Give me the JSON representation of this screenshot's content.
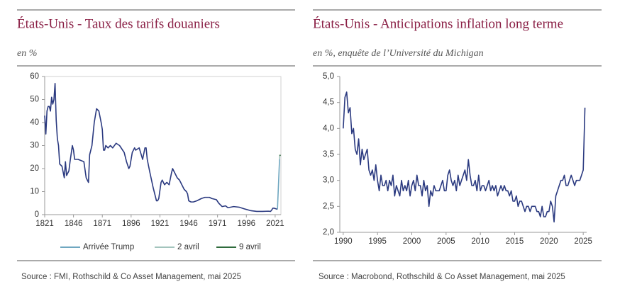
{
  "chart_data": [
    {
      "type": "line",
      "title": "États-Unis  - Taux des tarifs douaniers",
      "subtitle": "en %",
      "source": "Source : FMI, Rothschild & Co Asset Management, mai 2025",
      "xlim": [
        1821,
        2026
      ],
      "xticks": [
        1821,
        1846,
        1871,
        1896,
        1921,
        1946,
        1971,
        1996,
        2021
      ],
      "ylim": [
        0,
        60
      ],
      "yticks": [
        0,
        10,
        20,
        30,
        40,
        50,
        60
      ],
      "legend": "bottom",
      "series": [
        {
          "color": "#2b3a80",
          "x": [
            1821,
            1822,
            1823,
            1824,
            1825,
            1826,
            1827,
            1828,
            1829,
            1830,
            1831,
            1832,
            1833,
            1834,
            1836,
            1838,
            1839,
            1840,
            1842,
            1843,
            1845,
            1846,
            1847,
            1850,
            1855,
            1857,
            1858,
            1859,
            1860,
            1862,
            1864,
            1866,
            1868,
            1870,
            1871,
            1872,
            1873,
            1874,
            1876,
            1878,
            1880,
            1883,
            1886,
            1890,
            1892,
            1894,
            1895,
            1897,
            1899,
            1900,
            1903,
            1906,
            1908,
            1909,
            1910,
            1912,
            1915,
            1917,
            1918,
            1919,
            1920,
            1922,
            1923,
            1925,
            1927,
            1929,
            1931,
            1932,
            1934,
            1936,
            1938,
            1940,
            1942,
            1944,
            1945,
            1946,
            1948,
            1950,
            1953,
            1957,
            1960,
            1964,
            1966,
            1970,
            1972,
            1975,
            1978,
            1980,
            1985,
            1990,
            1995,
            2000,
            2005,
            2010,
            2015,
            2017,
            2018,
            2019,
            2020,
            2023
          ],
          "values": [
            43,
            35,
            45,
            47,
            47,
            45,
            51,
            48,
            50,
            57,
            41,
            33,
            30,
            22,
            21,
            16,
            23,
            17,
            19,
            23,
            30,
            28,
            24,
            24,
            23,
            16,
            15,
            14,
            26,
            30,
            40,
            46,
            45,
            40,
            37,
            28,
            28,
            30,
            29,
            30,
            29,
            31,
            30,
            27,
            23,
            20,
            21,
            27,
            29,
            28,
            29,
            24,
            29,
            29,
            24,
            19,
            12,
            8,
            6,
            6,
            7,
            14,
            15,
            13,
            14,
            13,
            18,
            20,
            18,
            16,
            15,
            13,
            11,
            10,
            9,
            6,
            5.5,
            5.5,
            6,
            7,
            7.5,
            7.5,
            7,
            6.5,
            5,
            3.5,
            3.8,
            3,
            3.5,
            3.2,
            2.4,
            1.7,
            1.4,
            1.4,
            1.5,
            1.4,
            2,
            2.8,
            2.8,
            2.3
          ]
        },
        {
          "name": "Arrivée Trump",
          "color": "#6fa7c0",
          "x": [
            2023,
            2024.8
          ],
          "values": [
            2.3,
            24
          ]
        },
        {
          "name": "2 avril",
          "color": "#a3c4bd",
          "x": [
            2024.8,
            2025.1
          ],
          "values": [
            24,
            26
          ]
        },
        {
          "name": "9 avril",
          "color": "#2f6b3c",
          "x": [
            2025.1,
            2025.4
          ],
          "values": [
            26,
            25.5
          ]
        }
      ]
    },
    {
      "type": "line",
      "title": "États-Unis  - Anticipations inflation long terme",
      "subtitle": "en %, enquête de l’Université du Michigan",
      "source": "Source : Macrobond, Rothschild & Co Asset Management, mai 2025",
      "xlim": [
        1989.5,
        2025.5
      ],
      "xticks": [
        1990,
        1995,
        2000,
        2005,
        2010,
        2015,
        2020,
        2025
      ],
      "ylim": [
        2,
        5
      ],
      "yticks": [
        {
          "value": 2,
          "label": "2,0"
        },
        {
          "value": 2.5,
          "label": "2,5"
        },
        {
          "value": 3,
          "label": "3,0"
        },
        {
          "value": 3.5,
          "label": "3,5"
        },
        {
          "value": 4,
          "label": "4,0"
        },
        {
          "value": 4.5,
          "label": "4,5"
        },
        {
          "value": 5,
          "label": "5,0"
        }
      ],
      "series": [
        {
          "color": "#2b3a80",
          "x": [
            1990,
            1990.25,
            1990.5,
            1990.75,
            1991,
            1991.25,
            1991.5,
            1991.75,
            1992,
            1992.25,
            1992.5,
            1992.75,
            1993,
            1993.25,
            1993.5,
            1993.75,
            1994,
            1994.25,
            1994.5,
            1994.75,
            1995,
            1995.25,
            1995.5,
            1995.75,
            1996,
            1996.25,
            1996.5,
            1996.75,
            1997,
            1997.25,
            1997.5,
            1997.75,
            1998,
            1998.25,
            1998.5,
            1998.75,
            1999,
            1999.25,
            1999.5,
            1999.75,
            2000,
            2000.25,
            2000.5,
            2000.75,
            2001,
            2001.25,
            2001.5,
            2001.75,
            2002,
            2002.25,
            2002.5,
            2002.75,
            2003,
            2003.25,
            2003.5,
            2003.75,
            2004,
            2004.25,
            2004.5,
            2004.75,
            2005,
            2005.25,
            2005.5,
            2005.75,
            2006,
            2006.25,
            2006.5,
            2006.75,
            2007,
            2007.25,
            2007.5,
            2007.75,
            2008,
            2008.25,
            2008.5,
            2008.75,
            2009,
            2009.25,
            2009.5,
            2009.75,
            2010,
            2010.25,
            2010.5,
            2010.75,
            2011,
            2011.25,
            2011.5,
            2011.75,
            2012,
            2012.25,
            2012.5,
            2012.75,
            2013,
            2013.25,
            2013.5,
            2013.75,
            2014,
            2014.25,
            2014.5,
            2014.75,
            2015,
            2015.25,
            2015.5,
            2015.75,
            2016,
            2016.25,
            2016.5,
            2016.75,
            2017,
            2017.25,
            2017.5,
            2017.75,
            2018,
            2018.25,
            2018.5,
            2018.75,
            2019,
            2019.25,
            2019.5,
            2019.75,
            2020,
            2020.25,
            2020.5,
            2020.75,
            2021,
            2021.25,
            2021.5,
            2021.75,
            2022,
            2022.25,
            2022.5,
            2022.75,
            2023,
            2023.25,
            2023.5,
            2023.75,
            2024,
            2024.25,
            2024.5,
            2024.75,
            2025,
            2025.25
          ],
          "values": [
            4.0,
            4.6,
            4.7,
            4.3,
            4.4,
            3.9,
            4.0,
            3.6,
            3.5,
            3.8,
            3.3,
            3.6,
            3.4,
            3.5,
            3.6,
            3.2,
            3.1,
            3.2,
            3.0,
            3.3,
            3.0,
            2.8,
            3.1,
            2.9,
            2.9,
            3.0,
            2.8,
            3.0,
            2.9,
            3.1,
            2.7,
            2.9,
            2.8,
            2.7,
            3.0,
            2.8,
            2.9,
            2.8,
            3.0,
            2.7,
            2.9,
            3.0,
            2.8,
            3.1,
            2.9,
            2.9,
            2.7,
            3.0,
            2.8,
            2.9,
            2.5,
            2.8,
            2.7,
            2.9,
            2.8,
            2.8,
            2.8,
            2.9,
            3.0,
            2.8,
            2.8,
            3.1,
            3.2,
            3.0,
            2.9,
            3.0,
            2.8,
            3.1,
            2.9,
            3.0,
            3.1,
            3.2,
            3.0,
            3.4,
            3.1,
            2.9,
            2.9,
            3.0,
            2.8,
            3.1,
            2.8,
            2.9,
            2.9,
            2.8,
            2.9,
            3.0,
            2.8,
            2.9,
            2.8,
            2.9,
            2.7,
            2.8,
            2.9,
            2.8,
            2.9,
            2.8,
            2.8,
            2.7,
            2.8,
            2.6,
            2.6,
            2.7,
            2.5,
            2.6,
            2.6,
            2.5,
            2.4,
            2.5,
            2.5,
            2.4,
            2.5,
            2.5,
            2.5,
            2.4,
            2.4,
            2.3,
            2.5,
            2.3,
            2.3,
            2.4,
            2.4,
            2.6,
            2.5,
            2.2,
            2.7,
            2.8,
            2.9,
            3.0,
            3.0,
            3.1,
            2.9,
            2.9,
            3.0,
            3.1,
            3.0,
            2.9,
            3.0,
            3.0,
            3.0,
            3.1,
            3.2,
            4.4
          ]
        }
      ]
    }
  ]
}
